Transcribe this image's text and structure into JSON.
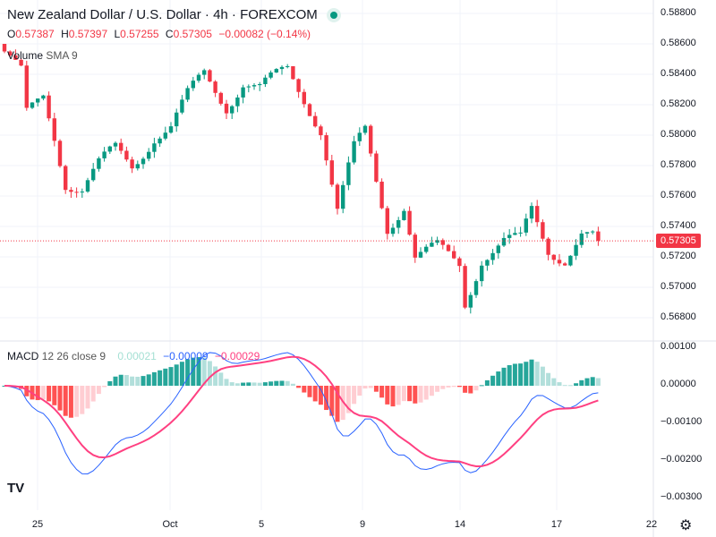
{
  "header": {
    "title": "New Zealand Dollar / U.S. Dollar · 4h · FOREXCOM",
    "status_color": "#089981"
  },
  "ohlc": {
    "o_label": "O",
    "o": "0.57387",
    "h_label": "H",
    "h": "0.57397",
    "l_label": "L",
    "l": "0.57255",
    "c_label": "C",
    "c": "0.57305",
    "change": "−0.00082 (−0.14%)"
  },
  "volume": {
    "label": "Volume",
    "params": "SMA 9"
  },
  "macd": {
    "label": "MACD",
    "params": "12 26 close 9",
    "hist": "0.00021",
    "macd": "−0.00009",
    "signal": "−0.00029"
  },
  "price_axis": [
    "0.58800",
    "0.58600",
    "0.58400",
    "0.58200",
    "0.58000",
    "0.57800",
    "0.57600",
    "0.57400",
    "0.57200",
    "0.57000",
    "0.56800"
  ],
  "last_price": "0.57305",
  "macd_axis": [
    "0.00100",
    "0.00000",
    "−0.00100",
    "−0.00200",
    "−0.00300"
  ],
  "time_axis": [
    "25",
    "Oct",
    "5",
    "9",
    "14",
    "17",
    "22"
  ],
  "colors": {
    "up": "#089981",
    "down": "#f23645",
    "macd": "#2962ff",
    "signal": "#ff4081"
  },
  "price_path": [
    [
      0,
      0.5855
    ],
    [
      3,
      0.584
    ],
    [
      4,
      0.5812
    ],
    [
      7,
      0.5825
    ],
    [
      9,
      0.58
    ],
    [
      11,
      0.577
    ],
    [
      14,
      0.5765
    ],
    [
      17,
      0.578
    ],
    [
      20,
      0.579
    ],
    [
      23,
      0.578
    ],
    [
      27,
      0.58
    ],
    [
      30,
      0.5805
    ],
    [
      33,
      0.5825
    ],
    [
      36,
      0.584
    ],
    [
      40,
      0.582
    ],
    [
      43,
      0.5835
    ],
    [
      46,
      0.583
    ],
    [
      51,
      0.5843
    ],
    [
      54,
      0.5825
    ],
    [
      57,
      0.5805
    ],
    [
      60,
      0.575
    ],
    [
      63,
      0.579
    ],
    [
      65,
      0.5802
    ],
    [
      67,
      0.577
    ],
    [
      69,
      0.574
    ],
    [
      72,
      0.5755
    ],
    [
      74,
      0.572
    ],
    [
      78,
      0.5725
    ],
    [
      82,
      0.5715
    ],
    [
      83,
      0.569
    ],
    [
      86,
      0.572
    ],
    [
      90,
      0.573
    ],
    [
      93,
      0.573
    ],
    [
      95,
      0.575
    ],
    [
      98,
      0.5725
    ],
    [
      101,
      0.572
    ],
    [
      104,
      0.5735
    ],
    [
      107,
      0.57305
    ]
  ],
  "branding": {
    "logo": "TV"
  }
}
